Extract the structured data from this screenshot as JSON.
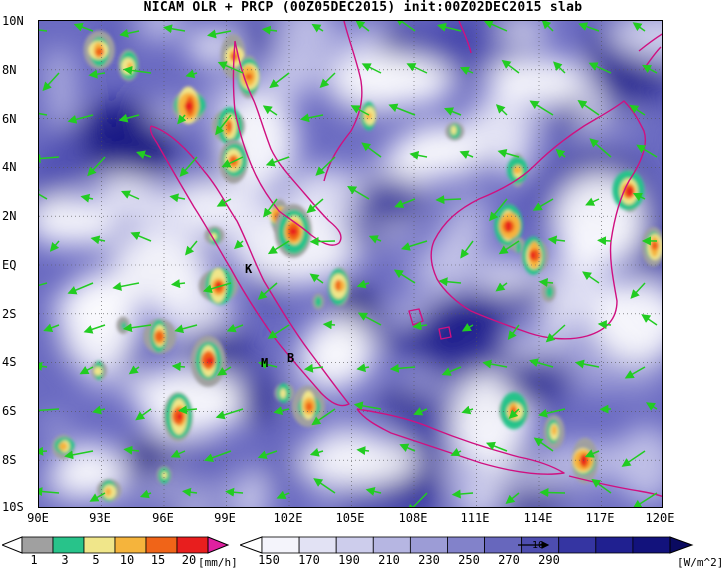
{
  "title": "NICAM OLR + PRCP (00Z05DEC2015) init:00Z02DEC2015 slab",
  "map": {
    "lat_labels": [
      "10N",
      "8N",
      "6N",
      "4N",
      "2N",
      "EQ",
      "2S",
      "4S",
      "6S",
      "8S",
      "10S"
    ],
    "lon_labels": [
      "90E",
      "93E",
      "96E",
      "99E",
      "102E",
      "105E",
      "108E",
      "111E",
      "114E",
      "117E",
      "120E"
    ],
    "lat_range": [
      -10,
      10
    ],
    "lon_range": [
      90,
      120
    ],
    "gridlines": "dotted",
    "coastline_color": "#d01080",
    "wind_vector_color": "#22cc22"
  },
  "stations": [
    {
      "label": "K",
      "lon": 100.8,
      "lat": -0.2
    },
    {
      "label": "M",
      "lon": 100.3,
      "lat": -4.2
    },
    {
      "label": "B",
      "lon": 102.1,
      "lat": -4.0
    }
  ],
  "precip_legend": {
    "ticks": [
      "1",
      "3",
      "5",
      "10",
      "15",
      "20"
    ],
    "unit": "[mm/h]",
    "colors": [
      "#a0a0a0",
      "#28c38a",
      "#f0e68a",
      "#f5b43c",
      "#f06418",
      "#e81e1e"
    ],
    "over_color": "#e020a0",
    "under_color": "#ffffff"
  },
  "olr_legend": {
    "ticks": [
      "150",
      "170",
      "190",
      "210",
      "230",
      "250",
      "270",
      "290"
    ],
    "unit": "[W/m^2]",
    "colors": [
      "#f4f4fb",
      "#e2e2f4",
      "#cdcdec",
      "#b6b6e2",
      "#9c9cd6",
      "#8282ca",
      "#6767bd",
      "#4d4db0",
      "#3535a2",
      "#202090",
      "#12127c"
    ],
    "over_color": "#0a0a60",
    "under_color": "#ffffff",
    "reference_vector": "10"
  }
}
